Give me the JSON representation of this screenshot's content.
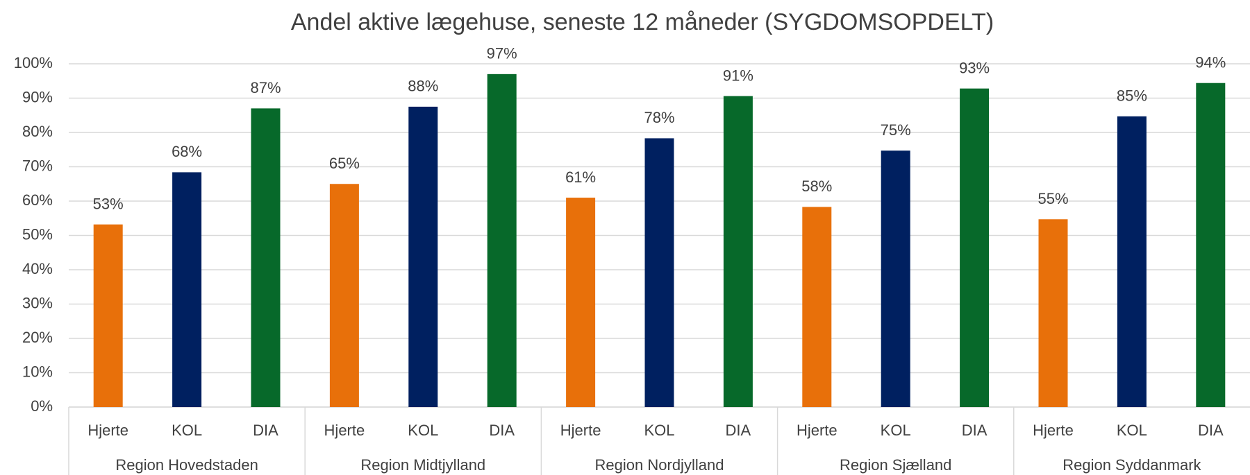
{
  "chart_data": {
    "type": "bar",
    "title": "Andel aktive lægehuse, seneste 12 måneder (SYGDOMSOPDELT)",
    "groups": [
      "Region Hovedstaden",
      "Region Midtjylland",
      "Region Nordjylland",
      "Region Sjælland",
      "Region Syddanmark"
    ],
    "categories": [
      "Hjerte",
      "KOL",
      "DIA",
      "Hjerte",
      "KOL",
      "DIA",
      "Hjerte",
      "KOL",
      "DIA",
      "Hjerte",
      "KOL",
      "DIA",
      "Hjerte",
      "KOL",
      "DIA"
    ],
    "values": [
      53.2,
      68.4,
      87,
      65,
      87.5,
      97,
      61,
      78.3,
      90.6,
      58.3,
      74.7,
      92.8,
      54.7,
      84.7,
      94.4
    ],
    "value_labels": [
      "53%",
      "68%",
      "87%",
      "65%",
      "88%",
      "97%",
      "61%",
      "78%",
      "91%",
      "58%",
      "75%",
      "93%",
      "55%",
      "85%",
      "94%"
    ],
    "colors": [
      "#e8700a",
      "#002060",
      "#07692a",
      "#e8700a",
      "#002060",
      "#07692a",
      "#e8700a",
      "#002060",
      "#07692a",
      "#e8700a",
      "#002060",
      "#07692a",
      "#e8700a",
      "#002060",
      "#07692a"
    ],
    "ylim": [
      0,
      100
    ],
    "yticks": [
      {
        "value": 0,
        "label": "0%"
      },
      {
        "value": 10,
        "label": "10%"
      },
      {
        "value": 20,
        "label": "20%"
      },
      {
        "value": 30,
        "label": "30%"
      },
      {
        "value": 40,
        "label": "40%"
      },
      {
        "value": 50,
        "label": "50%"
      },
      {
        "value": 60,
        "label": "60%"
      },
      {
        "value": 70,
        "label": "70%"
      },
      {
        "value": 80,
        "label": "80%"
      },
      {
        "value": 90,
        "label": "90%"
      },
      {
        "value": 100,
        "label": "100%"
      }
    ],
    "grid": true
  }
}
